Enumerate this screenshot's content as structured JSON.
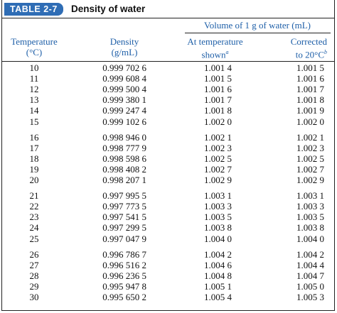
{
  "title": {
    "label": "TABLE 2-7",
    "text": "Density of water"
  },
  "header": {
    "group": "Volume of 1 g of water (mL)",
    "columns": [
      {
        "lines": [
          "Temperature",
          "(°C)"
        ]
      },
      {
        "lines": [
          "Density",
          "(g/mL)"
        ]
      },
      {
        "lines": [
          "At temperature",
          "shown"
        ],
        "sup": "a"
      },
      {
        "lines": [
          "Corrected",
          "to 20°C"
        ],
        "sup": "b"
      }
    ]
  },
  "table": {
    "groups": [
      [
        [
          "10",
          "0.999 702 6",
          "1.001 4",
          "1.001 5"
        ],
        [
          "11",
          "0.999 608 4",
          "1.001 5",
          "1.001 6"
        ],
        [
          "12",
          "0.999 500 4",
          "1.001 6",
          "1.001 7"
        ],
        [
          "13",
          "0.999 380 1",
          "1.001 7",
          "1.001 8"
        ],
        [
          "14",
          "0.999 247 4",
          "1.001 8",
          "1.001 9"
        ],
        [
          "15",
          "0.999 102 6",
          "1.002 0",
          "1.002 0"
        ]
      ],
      [
        [
          "16",
          "0.998 946 0",
          "1.002 1",
          "1.002 1"
        ],
        [
          "17",
          "0.998 777 9",
          "1.002 3",
          "1.002 3"
        ],
        [
          "18",
          "0.998 598 6",
          "1.002 5",
          "1.002 5"
        ],
        [
          "19",
          "0.998 408 2",
          "1.002 7",
          "1.002 7"
        ],
        [
          "20",
          "0.998 207 1",
          "1.002 9",
          "1.002 9"
        ]
      ],
      [
        [
          "21",
          "0.997 995 5",
          "1.003 1",
          "1.003 1"
        ],
        [
          "22",
          "0.997 773 5",
          "1.003 3",
          "1.003 3"
        ],
        [
          "23",
          "0.997 541 5",
          "1.003 5",
          "1.003 5"
        ],
        [
          "24",
          "0.997 299 5",
          "1.003 8",
          "1.003 8"
        ],
        [
          "25",
          "0.997 047 9",
          "1.004 0",
          "1.004 0"
        ]
      ],
      [
        [
          "26",
          "0.996 786 7",
          "1.004 2",
          "1.004 2"
        ],
        [
          "27",
          "0.996 516 2",
          "1.004 6",
          "1.004 4"
        ],
        [
          "28",
          "0.996 236 5",
          "1.004 8",
          "1.004 7"
        ],
        [
          "29",
          "0.995 947 8",
          "1.005 1",
          "1.005 0"
        ],
        [
          "30",
          "0.995 650 2",
          "1.005 4",
          "1.005 3"
        ]
      ]
    ]
  }
}
